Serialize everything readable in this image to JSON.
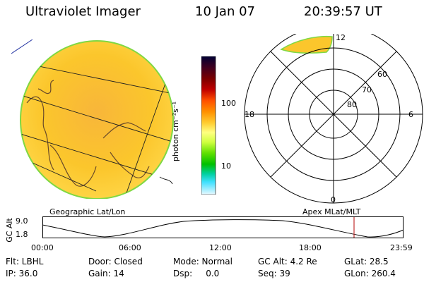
{
  "header": {
    "instrument": "Ultraviolet Imager",
    "date": "10 Jan 07",
    "time": "20:39:57 UT"
  },
  "colorbar": {
    "unit_label": "photon cm⁻²s⁻¹",
    "ticks": [
      "100",
      "10"
    ],
    "colors": [
      "#000033",
      "#400020",
      "#7a0000",
      "#b00000",
      "#e01010",
      "#ff5000",
      "#ff9000",
      "#ffcc30",
      "#ffff80",
      "#d0ff40",
      "#60e000",
      "#00c000",
      "#00d0a0",
      "#40e0ff",
      "#c0f0ff",
      "#e8f8ff"
    ]
  },
  "panels": {
    "geo_label": "Geographic Lat/Lon",
    "apex_label": "Apex MLat/MLT"
  },
  "polar": {
    "lat_labels": [
      "60",
      "70",
      "80"
    ],
    "mlt_labels": [
      "12",
      "18",
      "6",
      "0"
    ]
  },
  "timeline": {
    "axis_label": "GC Alt",
    "y_ticks": [
      "9.0",
      "1.8"
    ],
    "x_ticks": [
      "00:00",
      "06:00",
      "12:00",
      "18:00",
      "23:59"
    ]
  },
  "info": {
    "row1": [
      "Flt: LBHL",
      "Door: Closed",
      "Mode: Normal",
      "GC Alt: 4.2 Re",
      "GLat: 28.5"
    ],
    "row2": [
      "IP: 36.0",
      "Gain: 14",
      "Dsp:     0.0",
      "Seq: 39",
      "GLon: 260.4"
    ]
  },
  "colors": {
    "disk_fill": "#fbc62c",
    "disk_edge": "#7fd843",
    "marker": "#c03030"
  }
}
